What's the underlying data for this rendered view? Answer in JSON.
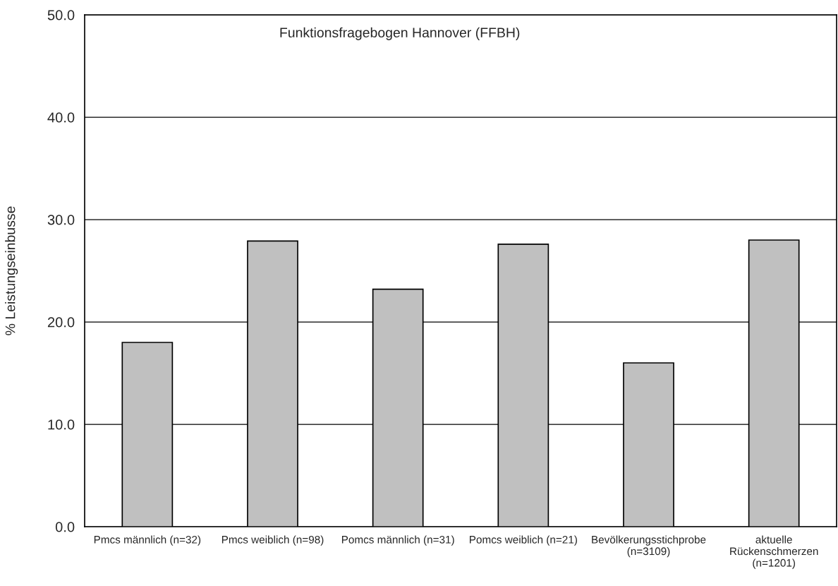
{
  "chart_data": {
    "type": "bar",
    "title": "Funktionsfragebogen Hannover (FFBH)",
    "ylabel": "% Leistungseinbusse",
    "categories": [
      "Pmcs männlich (n=32)",
      "Pmcs weiblich (n=98)",
      "Pomcs männlich (n=31)",
      "Pomcs weiblich (n=21)",
      "Bevölkerungsstichprobe\n(n=3109)",
      "aktuelle\nRückenschmerzen\n(n=1201)"
    ],
    "values": [
      18.0,
      27.9,
      23.2,
      27.6,
      16.0,
      28.0
    ],
    "color": "#c0c0c0",
    "ylim": [
      0,
      50
    ],
    "yticks": [
      {
        "value": 0,
        "label": "0.0"
      },
      {
        "value": 10,
        "label": "10.0"
      },
      {
        "value": 20,
        "label": "20.0"
      },
      {
        "value": 30,
        "label": "30.0"
      },
      {
        "value": 40,
        "label": "40.0"
      },
      {
        "value": 50,
        "label": "50.0"
      }
    ],
    "grid": "y"
  }
}
